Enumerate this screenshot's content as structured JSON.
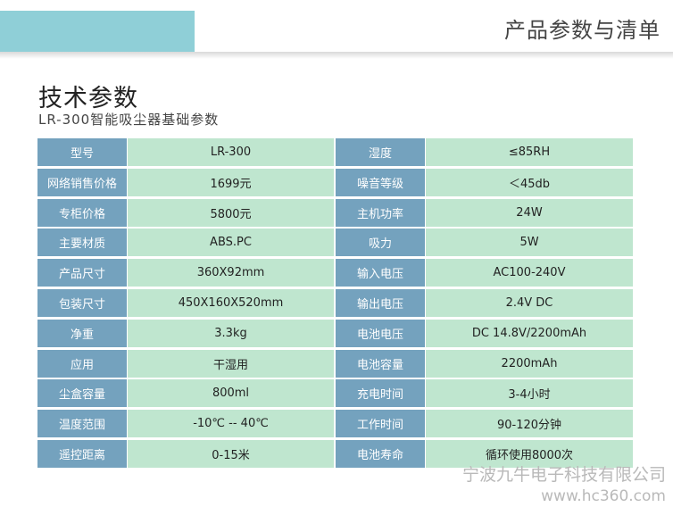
{
  "banner": {
    "title": "产品参数与清单"
  },
  "page": {
    "title": "技术参数",
    "subtitle": "LR-300智能吸尘器基础参数"
  },
  "left_table": [
    {
      "label": "型号",
      "value": "LR-300"
    },
    {
      "label": "网络销售价格",
      "value": "1699元"
    },
    {
      "label": "专柜价格",
      "value": "5800元"
    },
    {
      "label": "主要材质",
      "value": "ABS.PC"
    },
    {
      "label": "产品尺寸",
      "value": "360X92mm"
    },
    {
      "label": "包装尺寸",
      "value": "450X160X520mm"
    },
    {
      "label": "净重",
      "value": "3.3kg"
    },
    {
      "label": "应用",
      "value": "干湿用"
    },
    {
      "label": "尘盒容量",
      "value": "800ml"
    },
    {
      "label": "温度范围",
      "value": "-10℃ -- 40℃"
    },
    {
      "label": "遥控距离",
      "value": "0-15米"
    }
  ],
  "right_table": [
    {
      "label": "湿度",
      "value": "≤85RH"
    },
    {
      "label": "噪音等级",
      "value": "＜45db"
    },
    {
      "label": "主机功率",
      "value": "24W"
    },
    {
      "label": "吸力",
      "value": "5W"
    },
    {
      "label": "输入电压",
      "value": "AC100-240V"
    },
    {
      "label": "输出电压",
      "value": "2.4V  DC"
    },
    {
      "label": "电池电压",
      "value": "DC  14.8V/2200mAh"
    },
    {
      "label": "电池容量",
      "value": "2200mAh"
    },
    {
      "label": "充电时间",
      "value": "3-4小时"
    },
    {
      "label": "工作时间",
      "value": "90-120分钟"
    },
    {
      "label": "电池寿命",
      "value": "循环使用8000次"
    }
  ],
  "watermark": {
    "company": "宁波九牛电子科技有限公司",
    "url": "www.hc360.com"
  }
}
